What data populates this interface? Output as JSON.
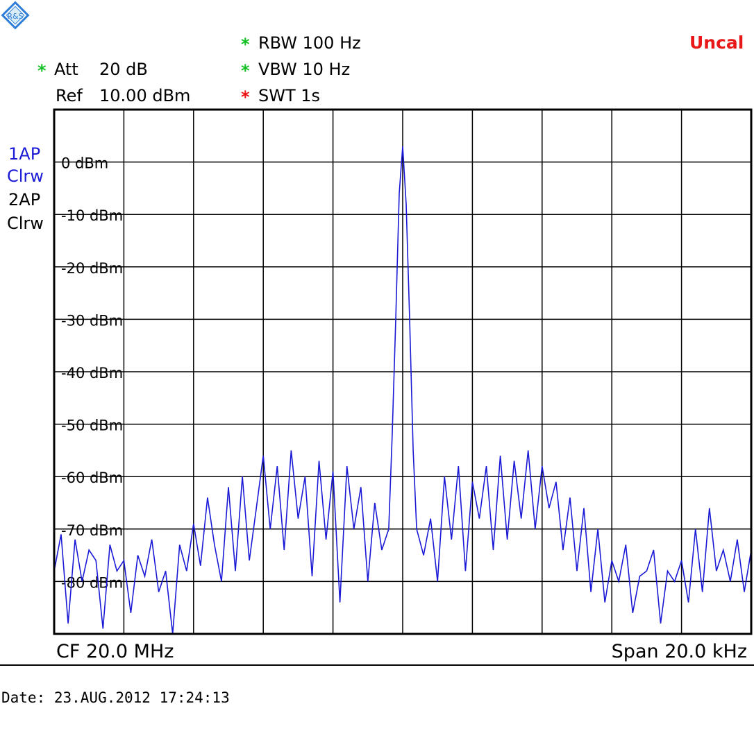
{
  "header": {
    "att_label": "Att",
    "att_value": "20 dB",
    "ref_label": "Ref",
    "ref_value": "10.00 dBm",
    "rbw": "RBW 100 Hz",
    "vbw": "VBW 10 Hz",
    "swt": "SWT 1s",
    "uncal": "Uncal",
    "star_mark": "*"
  },
  "traces": {
    "trace1_line1": "1AP",
    "trace1_line2": "Clrw",
    "trace2_line1": "2AP",
    "trace2_line2": "Clrw"
  },
  "footer": {
    "cf": "CF 20.0 MHz",
    "span": "Span 20.0 kHz",
    "date": "Date: 23.AUG.2012  17:24:13"
  },
  "colors": {
    "trace": "#1a1ad6",
    "grid": "#000000",
    "star_green": "#10c020",
    "star_red": "#ee1111",
    "uncal": "#e81818",
    "trace1_label": "#1a1ad6"
  },
  "chart_data": {
    "type": "line",
    "title": "",
    "xlabel": "",
    "ylabel": "",
    "center_frequency_mhz": 20.0,
    "span_khz": 20.0,
    "x_unit": "kHz offset from CF",
    "xlim": [
      -10,
      10
    ],
    "ylim": [
      -90,
      10
    ],
    "y_tick_labels": [
      "0 dBm",
      "-10 dBm",
      "-20 dBm",
      "-30 dBm",
      "-40 dBm",
      "-50 dBm",
      "-60 dBm",
      "-70 dBm",
      "-80 dBm"
    ],
    "y_tick_values": [
      0,
      -10,
      -20,
      -30,
      -40,
      -50,
      -60,
      -70,
      -80
    ],
    "x_divisions": 10,
    "grid": true,
    "series": [
      {
        "x": [
          -10.0,
          -9.8,
          -9.6,
          -9.4,
          -9.2,
          -9.0,
          -8.8,
          -8.6,
          -8.4,
          -8.2,
          -8.0,
          -7.8,
          -7.6,
          -7.4,
          -7.2,
          -7.0,
          -6.8,
          -6.6,
          -6.4,
          -6.2,
          -6.0,
          -5.8,
          -5.6,
          -5.4,
          -5.2,
          -5.0,
          -4.8,
          -4.6,
          -4.4,
          -4.2,
          -4.0,
          -3.8,
          -3.6,
          -3.4,
          -3.2,
          -3.0,
          -2.8,
          -2.6,
          -2.4,
          -2.2,
          -2.0,
          -1.8,
          -1.6,
          -1.4,
          -1.2,
          -1.0,
          -0.8,
          -0.6,
          -0.4,
          -0.3,
          -0.2,
          -0.1,
          0.0,
          0.1,
          0.2,
          0.3,
          0.4,
          0.6,
          0.8,
          1.0,
          1.2,
          1.4,
          1.6,
          1.8,
          2.0,
          2.2,
          2.4,
          2.6,
          2.8,
          3.0,
          3.2,
          3.4,
          3.6,
          3.8,
          4.0,
          4.2,
          4.4,
          4.6,
          4.8,
          5.0,
          5.2,
          5.4,
          5.6,
          5.8,
          6.0,
          6.2,
          6.4,
          6.6,
          6.8,
          7.0,
          7.2,
          7.4,
          7.6,
          7.8,
          8.0,
          8.2,
          8.4,
          8.6,
          8.8,
          9.0,
          9.2,
          9.4,
          9.6,
          9.8,
          10.0
        ],
        "y": [
          -78,
          -71,
          -88,
          -72,
          -80,
          -74,
          -76,
          -89,
          -73,
          -78,
          -76,
          -86,
          -75,
          -79,
          -72,
          -82,
          -78,
          -90,
          -73,
          -78,
          -69,
          -77,
          -64,
          -73,
          -80,
          -62,
          -78,
          -60,
          -76,
          -66,
          -56,
          -70,
          -58,
          -74,
          -55,
          -68,
          -60,
          -79,
          -57,
          -72,
          -59,
          -84,
          -58,
          -70,
          -62,
          -80,
          -65,
          -74,
          -70,
          -52,
          -30,
          -6,
          3,
          -8,
          -30,
          -55,
          -70,
          -75,
          -68,
          -80,
          -60,
          -72,
          -58,
          -78,
          -61,
          -68,
          -58,
          -74,
          -56,
          -72,
          -57,
          -68,
          -55,
          -70,
          -58,
          -66,
          -61,
          -74,
          -64,
          -78,
          -66,
          -82,
          -70,
          -84,
          -76,
          -80,
          -73,
          -86,
          -79,
          -78,
          -74,
          -88,
          -78,
          -80,
          -76,
          -84,
          -70,
          -82,
          -66,
          -78,
          -74,
          -80,
          -72,
          -82,
          -74
        ]
      }
    ]
  }
}
